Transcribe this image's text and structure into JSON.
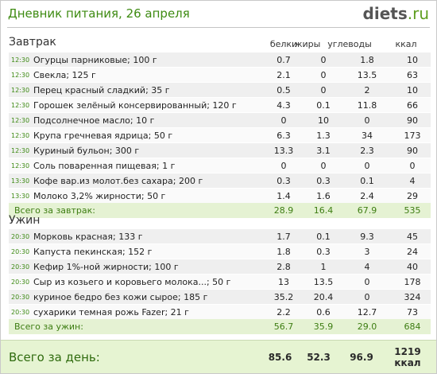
{
  "title": "Дневник питания, 26 апреля",
  "logo": {
    "name": "diets",
    "tld": ".ru"
  },
  "columns": {
    "protein": "белки",
    "fat": "жиры",
    "carbs": "углеводы",
    "kcal": "ккал"
  },
  "breakfast": {
    "title": "Завтрак",
    "rows": [
      {
        "time": "12:30",
        "name": "Огурцы парниковые; 100 г",
        "p": "0.7",
        "f": "0",
        "c": "1.8",
        "k": "10"
      },
      {
        "time": "12:30",
        "name": "Свекла; 125 г",
        "p": "2.1",
        "f": "0",
        "c": "13.5",
        "k": "63"
      },
      {
        "time": "12:30",
        "name": "Перец красный сладкий; 35 г",
        "p": "0.5",
        "f": "0",
        "c": "2",
        "k": "10"
      },
      {
        "time": "12:30",
        "name": "Горошек зелёный консервированный; 120 г",
        "p": "4.3",
        "f": "0.1",
        "c": "11.8",
        "k": "66"
      },
      {
        "time": "12:30",
        "name": "Подсолнечное масло; 10 г",
        "p": "0",
        "f": "10",
        "c": "0",
        "k": "90"
      },
      {
        "time": "12:30",
        "name": "Крупа гречневая ядрица; 50 г",
        "p": "6.3",
        "f": "1.3",
        "c": "34",
        "k": "173"
      },
      {
        "time": "12:30",
        "name": "Куриный бульон; 300 г",
        "p": "13.3",
        "f": "3.1",
        "c": "2.3",
        "k": "90"
      },
      {
        "time": "12:30",
        "name": "Соль поваренная пищевая; 1 г",
        "p": "0",
        "f": "0",
        "c": "0",
        "k": "0"
      },
      {
        "time": "13:30",
        "name": "Кофе вар.из молот.без сахара; 200 г",
        "p": "0.3",
        "f": "0.3",
        "c": "0.1",
        "k": "4"
      },
      {
        "time": "13:30",
        "name": "Молоко 3,2% жирности; 50 г",
        "p": "1.4",
        "f": "1.6",
        "c": "2.4",
        "k": "29"
      }
    ],
    "total": {
      "label": "Всего за завтрак:",
      "p": "28.9",
      "f": "16.4",
      "c": "67.9",
      "k": "535"
    }
  },
  "dinner": {
    "title": "Ужин",
    "rows": [
      {
        "time": "20:30",
        "name": "Морковь красная; 133 г",
        "p": "1.7",
        "f": "0.1",
        "c": "9.3",
        "k": "45"
      },
      {
        "time": "20:30",
        "name": "Капуста пекинская; 152 г",
        "p": "1.8",
        "f": "0.3",
        "c": "3",
        "k": "24"
      },
      {
        "time": "20:30",
        "name": "Кефир 1%-ной жирности; 100 г",
        "p": "2.8",
        "f": "1",
        "c": "4",
        "k": "40"
      },
      {
        "time": "20:30",
        "name": "Сыр из козьего и коровьего молока...; 50 г",
        "p": "13",
        "f": "13.5",
        "c": "0",
        "k": "178"
      },
      {
        "time": "20:30",
        "name": "куриное бедро без кожи сырое; 185 г",
        "p": "35.2",
        "f": "20.4",
        "c": "0",
        "k": "324"
      },
      {
        "time": "20:30",
        "name": "сухарики темная рожь Fazer; 21 г",
        "p": "2.2",
        "f": "0.6",
        "c": "12.7",
        "k": "73"
      }
    ],
    "total": {
      "label": "Всего за ужин:",
      "p": "56.7",
      "f": "35.9",
      "c": "29.0",
      "k": "684"
    }
  },
  "day_total": {
    "label": "Всего за день:",
    "p": "85.6",
    "f": "52.3",
    "c": "96.9",
    "k": "1219 ккал"
  }
}
